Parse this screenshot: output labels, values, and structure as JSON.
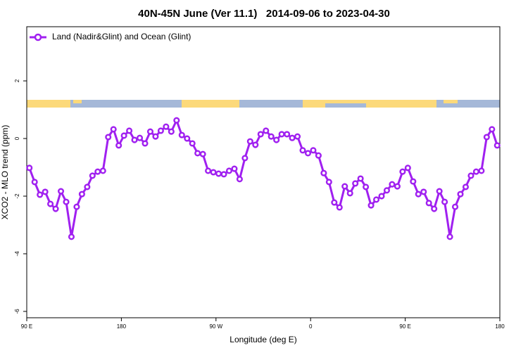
{
  "chart_data": {
    "type": "line",
    "title": "40N-45N June (Ver 11.1)   2014-09-06 to 2023-04-30",
    "x_label": "Longitude (deg E)",
    "y_label": "XCO2 - MLO trend (ppm)",
    "x": [
      92.5,
      97.5,
      102.5,
      107.5,
      112.5,
      117.5,
      122.5,
      127.5,
      132.5,
      137.5,
      142.5,
      147.5,
      152.5,
      157.5,
      162.5,
      167.5,
      172.5,
      177.5,
      182.5,
      187.5,
      192.5,
      197.5,
      202.5,
      207.5,
      212.5,
      217.5,
      222.5,
      227.5,
      232.5,
      237.5,
      242.5,
      247.5,
      252.5,
      257.5,
      262.5,
      267.5,
      272.5,
      277.5,
      282.5,
      287.5,
      292.5,
      297.5,
      302.5,
      307.5,
      312.5,
      317.5,
      322.5,
      327.5,
      332.5,
      337.5,
      342.5,
      347.5,
      352.5,
      357.5,
      362.5,
      367.5,
      372.5,
      377.5,
      382.5,
      387.5,
      392.5,
      397.5,
      402.5,
      407.5,
      412.5,
      417.5,
      422.5,
      427.5,
      432.5,
      437.5,
      442.5,
      447.5,
      452.5,
      457.5,
      462.5,
      467.5,
      472.5,
      477.5,
      482.5,
      487.5,
      492.5,
      497.5,
      502.5,
      507.5,
      512.5,
      517.5,
      522.5,
      527.5,
      532.5,
      537.5
    ],
    "series": [
      {
        "name": "Land (Nadir&Glint) and Ocean (Glint)",
        "color": "#a020f0",
        "values": [
          -1.02,
          -1.51,
          -1.95,
          -1.85,
          -2.27,
          -2.44,
          -1.83,
          -2.2,
          -3.41,
          -2.37,
          -1.93,
          -1.68,
          -1.29,
          -1.15,
          -1.12,
          0.05,
          0.32,
          -0.24,
          0.1,
          0.27,
          -0.05,
          0.02,
          -0.17,
          0.24,
          0.07,
          0.27,
          0.41,
          0.24,
          0.63,
          0.12,
          0,
          -0.17,
          -0.51,
          -0.54,
          -1.12,
          -1.17,
          -1.22,
          -1.24,
          -1.12,
          -1.05,
          -1.41,
          -0.68,
          -0.1,
          -0.22,
          0.15,
          0.27,
          0.07,
          -0.05,
          0.15,
          0.15,
          0.02,
          0.07,
          -0.41,
          -0.51,
          -0.41,
          -0.59,
          -1.2,
          -1.51,
          -2.22,
          -2.39,
          -1.66,
          -1.9,
          -1.56,
          -1.39,
          -1.68,
          -2.32,
          -2.12,
          -2.0,
          -1.8,
          -1.59,
          -1.66,
          -1.15,
          -1.02,
          -1.49,
          -1.93,
          -1.85,
          -2.24,
          -2.44,
          -1.83,
          -2.2,
          -3.41,
          -2.37,
          -1.93,
          -1.68,
          -1.29,
          -1.15,
          -1.12,
          0.05,
          0.32,
          -0.24
        ]
      }
    ],
    "xlim": [
      90,
      540
    ],
    "xticks": [
      {
        "value": 90,
        "label": "90 E"
      },
      {
        "value": 180,
        "label": "180"
      },
      {
        "value": 270,
        "label": "90 W"
      },
      {
        "value": 360,
        "label": "0"
      },
      {
        "value": 450,
        "label": "90 E"
      },
      {
        "value": 540,
        "label": "180"
      }
    ],
    "ylim": [
      -6.22,
      3.88
    ],
    "yticks": [
      -6,
      -4,
      -2,
      0,
      2
    ],
    "legend": "top-left"
  }
}
